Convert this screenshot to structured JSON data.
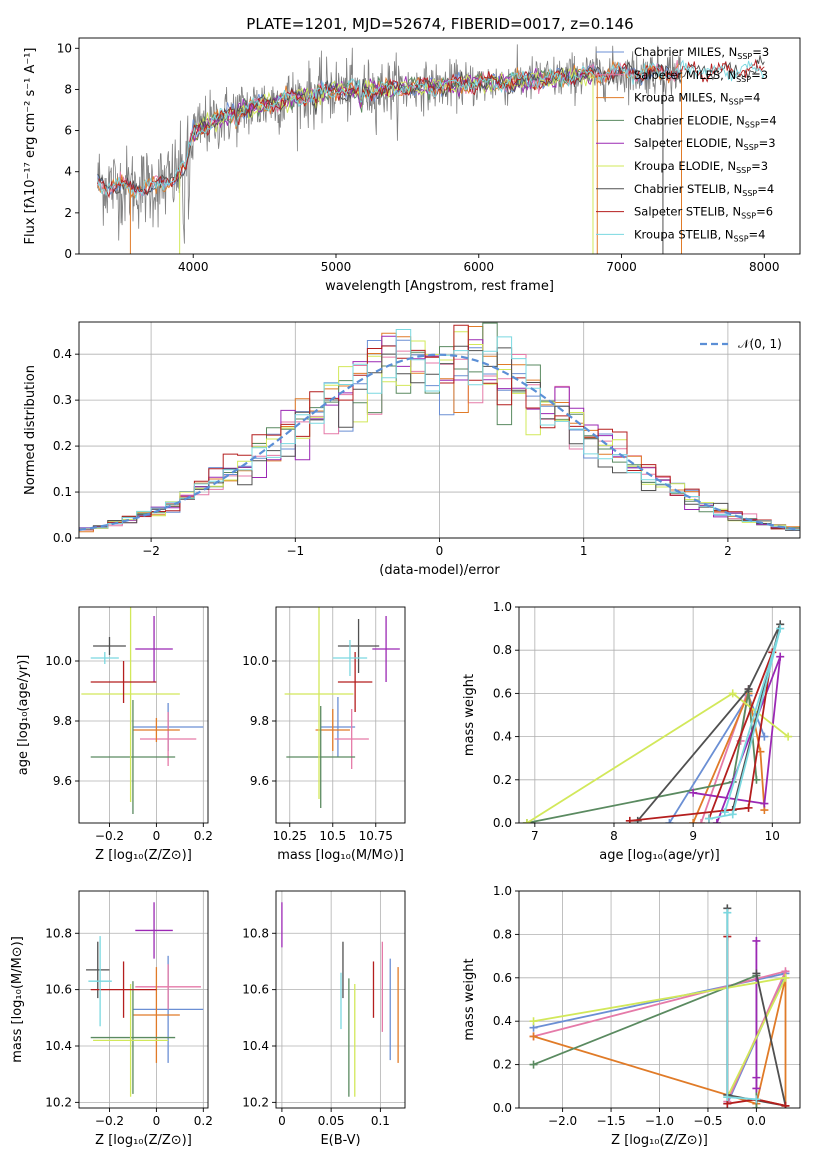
{
  "figure": {
    "title": "PLATE=1201, MJD=52674, FIBERID=0017, z=0.146"
  },
  "colors": {
    "Chabrier MILES": "#6b8fd4",
    "Salpeter MILES": "#e57aa8",
    "Kroupa MILES": "#e07b28",
    "Chabrier ELODIE": "#5a8a60",
    "Salpeter ELODIE": "#9b28b4",
    "Kroupa ELODIE": "#d2e85a",
    "Chabrier STELIB": "#505050",
    "Salpeter STELIB": "#b41e1e",
    "Kroupa STELIB": "#7ad8e0",
    "data": "#808080",
    "normal": "#5b8fd6"
  },
  "chart_data": [
    {
      "id": "spectrum",
      "type": "line",
      "xlabel": "wavelength [Angstrom, rest frame]",
      "ylabel": "Flux [fλ10⁻¹⁷ erg cm⁻² s⁻¹ A⁻¹]",
      "xlim": [
        3200,
        8250
      ],
      "ylim": [
        0,
        10.5
      ],
      "xticks": [
        4000,
        5000,
        6000,
        7000,
        8000
      ],
      "yticks": [
        0,
        2,
        4,
        6,
        8,
        10
      ],
      "legend": "top-right",
      "continuum_model": {
        "x": [
          3330,
          3450,
          3600,
          3800,
          3950,
          4000,
          4100,
          4300,
          4500,
          4800,
          5000,
          5200,
          5500,
          5800,
          6000,
          6300,
          6600,
          6900,
          7200,
          7500,
          7800,
          8000
        ],
        "y": [
          3.5,
          3.3,
          3.2,
          3.4,
          4.2,
          5.9,
          6.3,
          6.9,
          7.3,
          7.7,
          8.0,
          7.9,
          8.1,
          8.2,
          8.3,
          8.4,
          8.6,
          8.8,
          8.8,
          8.9,
          8.9,
          9.0
        ]
      },
      "series": [
        {
          "name": "Chabrier MILES, N_SSP=3",
          "label_main": "Chabrier MILES, N",
          "label_sub": "SSP",
          "label_tail": "=3"
        },
        {
          "name": "Salpeter MILES, N_SSP=3",
          "label_main": "Salpeter MILES, N",
          "label_sub": "SSP",
          "label_tail": "=3"
        },
        {
          "name": "Kroupa MILES, N_SSP=4",
          "label_main": "Kroupa MILES, N",
          "label_sub": "SSP",
          "label_tail": "=4"
        },
        {
          "name": "Chabrier ELODIE, N_SSP=4",
          "label_main": "Chabrier ELODIE, N",
          "label_sub": "SSP",
          "label_tail": "=4"
        },
        {
          "name": "Salpeter ELODIE, N_SSP=3",
          "label_main": "Salpeter ELODIE, N",
          "label_sub": "SSP",
          "label_tail": "=3"
        },
        {
          "name": "Kroupa ELODIE, N_SSP=3",
          "label_main": "Kroupa ELODIE, N",
          "label_sub": "SSP",
          "label_tail": "=3"
        },
        {
          "name": "Chabrier STELIB, N_SSP=4",
          "label_main": "Chabrier STELIB, N",
          "label_sub": "SSP",
          "label_tail": "=4"
        },
        {
          "name": "Salpeter STELIB, N_SSP=6",
          "label_main": "Salpeter STELIB, N",
          "label_sub": "SSP",
          "label_tail": "=6"
        },
        {
          "name": "Kroupa STELIB, N_SSP=4",
          "label_main": "Kroupa STELIB, N",
          "label_sub": "SSP",
          "label_tail": "=4"
        }
      ]
    },
    {
      "id": "residuals",
      "type": "histogram",
      "xlabel": "(data-model)/error",
      "ylabel": "Normed distribution",
      "xlim": [
        -2.5,
        2.5
      ],
      "ylim": [
        0,
        0.47
      ],
      "xticks": [
        -2,
        -1,
        0,
        1,
        2
      ],
      "yticks": [
        0.0,
        0.1,
        0.2,
        0.3,
        0.4
      ],
      "grid": true,
      "legend": "top-right",
      "normal_label": "𝒩(0, 1)",
      "bin_width": 0.1
    },
    {
      "id": "age-vs-Z",
      "type": "errorbar",
      "xlabel": "Z [log₁₀(Z/Z⊙)]",
      "ylabel": "age  [log₁₀(age/yr)]",
      "xlim": [
        -0.33,
        0.22
      ],
      "ylim": [
        9.46,
        10.18
      ],
      "xticks": [
        -0.2,
        0.0,
        0.2
      ],
      "yticks": [
        9.6,
        9.8,
        10.0
      ],
      "grid": true,
      "points": [
        {
          "model": "Chabrier MILES",
          "x": 0.05,
          "y": 9.78,
          "xerr": 0.15,
          "yerr": 0.08
        },
        {
          "model": "Salpeter MILES",
          "x": 0.05,
          "y": 9.74,
          "xerr": 0.12,
          "yerr": 0.09
        },
        {
          "model": "Kroupa MILES",
          "x": 0.0,
          "y": 9.77,
          "xerr": 0.1,
          "yerr": 0.04
        },
        {
          "model": "Chabrier ELODIE",
          "x": -0.1,
          "y": 9.68,
          "xerr": 0.18,
          "yerr": 0.19
        },
        {
          "model": "Salpeter ELODIE",
          "x": -0.01,
          "y": 10.04,
          "xerr": 0.08,
          "yerr": 0.11
        },
        {
          "model": "Kroupa ELODIE",
          "x": -0.11,
          "y": 9.89,
          "xerr": 0.21,
          "yerr": 0.36
        },
        {
          "model": "Chabrier STELIB",
          "x": -0.2,
          "y": 10.05,
          "xerr": 0.07,
          "yerr": 0.03
        },
        {
          "model": "Salpeter STELIB",
          "x": -0.14,
          "y": 9.93,
          "xerr": 0.14,
          "yerr": 0.07
        },
        {
          "model": "Kroupa STELIB",
          "x": -0.22,
          "y": 10.01,
          "xerr": 0.06,
          "yerr": 0.02
        }
      ]
    },
    {
      "id": "age-vs-mass",
      "type": "errorbar",
      "xlabel": "mass [log₁₀(M/M⊙)]",
      "ylabel": "",
      "xlim": [
        10.17,
        10.92
      ],
      "ylim": [
        9.46,
        10.18
      ],
      "xticks": [
        10.25,
        10.5,
        10.75
      ],
      "yticks": [
        9.6,
        9.8,
        10.0
      ],
      "grid": true,
      "points": [
        {
          "model": "Chabrier MILES",
          "x": 10.53,
          "y": 9.78,
          "xerr": 0.1,
          "yerr": 0.1
        },
        {
          "model": "Salpeter MILES",
          "x": 10.61,
          "y": 9.74,
          "xerr": 0.1,
          "yerr": 0.1
        },
        {
          "model": "Kroupa MILES",
          "x": 10.5,
          "y": 9.77,
          "xerr": 0.1,
          "yerr": 0.07
        },
        {
          "model": "Chabrier ELODIE",
          "x": 10.43,
          "y": 9.68,
          "xerr": 0.2,
          "yerr": 0.17
        },
        {
          "model": "Salpeter ELODIE",
          "x": 10.81,
          "y": 10.04,
          "xerr": 0.08,
          "yerr": 0.11
        },
        {
          "model": "Kroupa ELODIE",
          "x": 10.42,
          "y": 9.89,
          "xerr": 0.2,
          "yerr": 0.35
        },
        {
          "model": "Chabrier STELIB",
          "x": 10.65,
          "y": 10.05,
          "xerr": 0.12,
          "yerr": 0.09
        },
        {
          "model": "Salpeter STELIB",
          "x": 10.63,
          "y": 9.93,
          "xerr": 0.1,
          "yerr": 0.1
        },
        {
          "model": "Kroupa STELIB",
          "x": 10.6,
          "y": 10.01,
          "xerr": 0.1,
          "yerr": 0.06
        }
      ]
    },
    {
      "id": "weight-vs-age",
      "type": "line",
      "xlabel": "age  [log₁₀(age/yr)]",
      "ylabel": "mass weight",
      "xlim": [
        6.8,
        10.35
      ],
      "ylim": [
        0,
        1.0
      ],
      "xticks": [
        7,
        8,
        9,
        10
      ],
      "yticks": [
        0.0,
        0.2,
        0.4,
        0.6,
        0.8,
        1.0
      ],
      "grid": true,
      "series": [
        {
          "model": "Chabrier MILES",
          "x": [
            8.7,
            9.7,
            9.9
          ],
          "y": [
            0.0,
            0.59,
            0.4
          ]
        },
        {
          "model": "Salpeter MILES",
          "x": [
            9.1,
            9.7,
            9.6
          ],
          "y": [
            0.0,
            0.62,
            0.38
          ]
        },
        {
          "model": "Kroupa MILES",
          "x": [
            9.0,
            9.7,
            9.85,
            9.9
          ],
          "y": [
            0.0,
            0.6,
            0.33,
            0.06
          ]
        },
        {
          "model": "Chabrier ELODIE",
          "x": [
            6.9,
            9.5,
            9.7,
            9.8
          ],
          "y": [
            0.0,
            0.19,
            0.61,
            0.2
          ]
        },
        {
          "model": "Salpeter ELODIE",
          "x": [
            9.3,
            10.1,
            9.9,
            9.0
          ],
          "y": [
            0.0,
            0.77,
            0.09,
            0.14
          ]
        },
        {
          "model": "Kroupa ELODIE",
          "x": [
            6.9,
            9.5,
            10.2
          ],
          "y": [
            0.0,
            0.6,
            0.4
          ]
        },
        {
          "model": "Chabrier STELIB",
          "x": [
            8.3,
            9.7,
            10.1,
            9.5
          ],
          "y": [
            0.01,
            0.62,
            0.92,
            0.06
          ]
        },
        {
          "model": "Salpeter STELIB",
          "x": [
            8.2,
            9.7,
            10.0,
            9.2
          ],
          "y": [
            0.01,
            0.07,
            0.79,
            0.02
          ]
        },
        {
          "model": "Kroupa STELIB",
          "x": [
            9.2,
            9.5,
            10.1,
            9.4
          ],
          "y": [
            0.02,
            0.04,
            0.9,
            0.05
          ]
        }
      ]
    },
    {
      "id": "mass-vs-Z",
      "type": "errorbar",
      "xlabel": "Z [log₁₀(Z/Z⊙)]",
      "ylabel": "mass [log₁₀(M/M⊙)]",
      "xlim": [
        -0.33,
        0.22
      ],
      "ylim": [
        10.18,
        10.95
      ],
      "xticks": [
        -0.2,
        0.0,
        0.2
      ],
      "yticks": [
        10.2,
        10.4,
        10.6,
        10.8
      ],
      "grid": true,
      "points": [
        {
          "model": "Chabrier MILES",
          "x": 0.05,
          "y": 10.53,
          "xerr": 0.15,
          "yerr": 0.19
        },
        {
          "model": "Salpeter MILES",
          "x": 0.05,
          "y": 10.61,
          "xerr": 0.14,
          "yerr": 0.08
        },
        {
          "model": "Kroupa MILES",
          "x": 0.0,
          "y": 10.51,
          "xerr": 0.1,
          "yerr": 0.17
        },
        {
          "model": "Chabrier ELODIE",
          "x": -0.1,
          "y": 10.43,
          "xerr": 0.18,
          "yerr": 0.2
        },
        {
          "model": "Salpeter ELODIE",
          "x": -0.01,
          "y": 10.81,
          "xerr": 0.08,
          "yerr": 0.1
        },
        {
          "model": "Kroupa ELODIE",
          "x": -0.11,
          "y": 10.42,
          "xerr": 0.16,
          "yerr": 0.2
        },
        {
          "model": "Chabrier STELIB",
          "x": -0.25,
          "y": 10.67,
          "xerr": 0.05,
          "yerr": 0.1
        },
        {
          "model": "Salpeter STELIB",
          "x": -0.14,
          "y": 10.6,
          "xerr": 0.14,
          "yerr": 0.1
        },
        {
          "model": "Kroupa STELIB",
          "x": -0.24,
          "y": 10.63,
          "xerr": 0.05,
          "yerr": 0.16
        }
      ]
    },
    {
      "id": "mass-vs-ebv",
      "type": "errorbar",
      "xlabel": "E(B-V)",
      "ylabel": "",
      "xlim": [
        -0.006,
        0.125
      ],
      "ylim": [
        10.18,
        10.95
      ],
      "xticks": [
        0.0,
        0.05,
        0.1
      ],
      "yticks": [
        10.2,
        10.4,
        10.6,
        10.8
      ],
      "grid": true,
      "points": [
        {
          "model": "Chabrier MILES",
          "x": 0.11,
          "y": 10.53,
          "xerr": 0.0,
          "yerr": 0.18
        },
        {
          "model": "Salpeter MILES",
          "x": 0.102,
          "y": 10.61,
          "xerr": 0.0,
          "yerr": 0.16
        },
        {
          "model": "Kroupa MILES",
          "x": 0.118,
          "y": 10.51,
          "xerr": 0.0,
          "yerr": 0.17
        },
        {
          "model": "Chabrier ELODIE",
          "x": 0.068,
          "y": 10.43,
          "xerr": 0.0,
          "yerr": 0.21
        },
        {
          "model": "Salpeter ELODIE",
          "x": 0.0,
          "y": 10.83,
          "xerr": 0.0,
          "yerr": 0.08
        },
        {
          "model": "Kroupa ELODIE",
          "x": 0.074,
          "y": 10.42,
          "xerr": 0.0,
          "yerr": 0.2
        },
        {
          "model": "Chabrier STELIB",
          "x": 0.062,
          "y": 10.67,
          "xerr": 0.0,
          "yerr": 0.1
        },
        {
          "model": "Salpeter STELIB",
          "x": 0.093,
          "y": 10.6,
          "xerr": 0.0,
          "yerr": 0.1
        },
        {
          "model": "Kroupa STELIB",
          "x": 0.06,
          "y": 10.56,
          "xerr": 0.0,
          "yerr": 0.1
        }
      ]
    },
    {
      "id": "weight-vs-Z",
      "type": "line",
      "xlabel": "Z [log₁₀(Z/Z⊙)]",
      "ylabel": "mass weight",
      "xlim": [
        -2.45,
        0.45
      ],
      "ylim": [
        0,
        1.0
      ],
      "xticks": [
        -2.0,
        -1.5,
        -1.0,
        -0.5,
        0.0
      ],
      "yticks": [
        0.0,
        0.2,
        0.4,
        0.6,
        0.8,
        1.0
      ],
      "grid": true,
      "series": [
        {
          "model": "Chabrier MILES",
          "x": [
            -2.3,
            0.3,
            -0.3
          ],
          "y": [
            0.37,
            0.62,
            0.02
          ]
        },
        {
          "model": "Salpeter MILES",
          "x": [
            -2.3,
            0.3,
            -0.3
          ],
          "y": [
            0.33,
            0.63,
            0.03
          ]
        },
        {
          "model": "Kroupa MILES",
          "x": [
            -2.3,
            0.0,
            0.3,
            0.3,
            0.0
          ],
          "y": [
            0.33,
            0.02,
            0.6,
            0.01,
            0.04
          ]
        },
        {
          "model": "Chabrier ELODIE",
          "x": [
            -2.3,
            0.0,
            0.0
          ],
          "y": [
            0.2,
            0.61,
            0.0
          ]
        },
        {
          "model": "Salpeter ELODIE",
          "x": [
            0.0,
            0.0,
            0.0
          ],
          "y": [
            0.77,
            0.09,
            0.14
          ]
        },
        {
          "model": "Kroupa ELODIE",
          "x": [
            -2.3,
            0.3,
            -0.3
          ],
          "y": [
            0.4,
            0.6,
            0.05
          ]
        },
        {
          "model": "Chabrier STELIB",
          "x": [
            -0.3,
            -0.3,
            0.3,
            0.0
          ],
          "y": [
            0.92,
            0.06,
            0.01,
            0.62
          ]
        },
        {
          "model": "Salpeter STELIB",
          "x": [
            -0.3,
            -0.3,
            0.0,
            0.3
          ],
          "y": [
            0.79,
            0.02,
            0.04,
            0.01
          ]
        },
        {
          "model": "Kroupa STELIB",
          "x": [
            -0.3,
            -0.3,
            0.0
          ],
          "y": [
            0.9,
            0.05,
            0.04
          ]
        }
      ]
    }
  ]
}
